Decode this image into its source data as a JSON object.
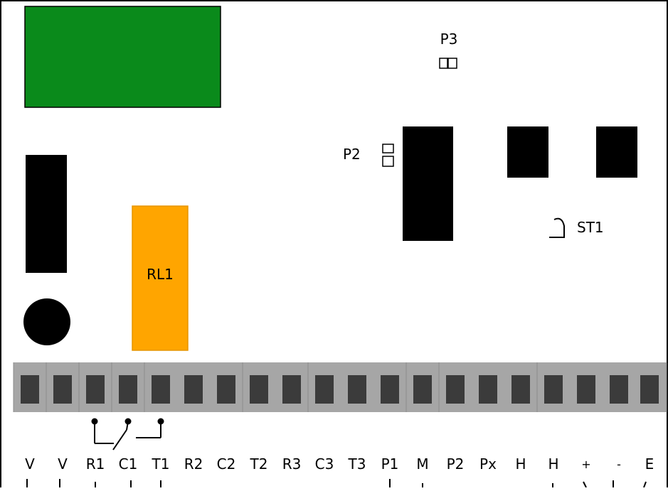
{
  "components": {
    "relay_label": "RL1",
    "p2_label": "P2",
    "p3_label": "P3",
    "st1_label": "ST1"
  },
  "terminals": [
    "V",
    "V",
    "R1",
    "C1",
    "T1",
    "R2",
    "C2",
    "T2",
    "R3",
    "C3",
    "T3",
    "P1",
    "M",
    "P2",
    "Px",
    "H",
    "H",
    "+",
    "-",
    "E"
  ],
  "colors": {
    "pcb_module": "#0a8a1b",
    "relay": "#ffa500",
    "terminal_strip": "#a6a6a6",
    "terminal_slot": "#3b3b3b",
    "chip": "#000000"
  }
}
